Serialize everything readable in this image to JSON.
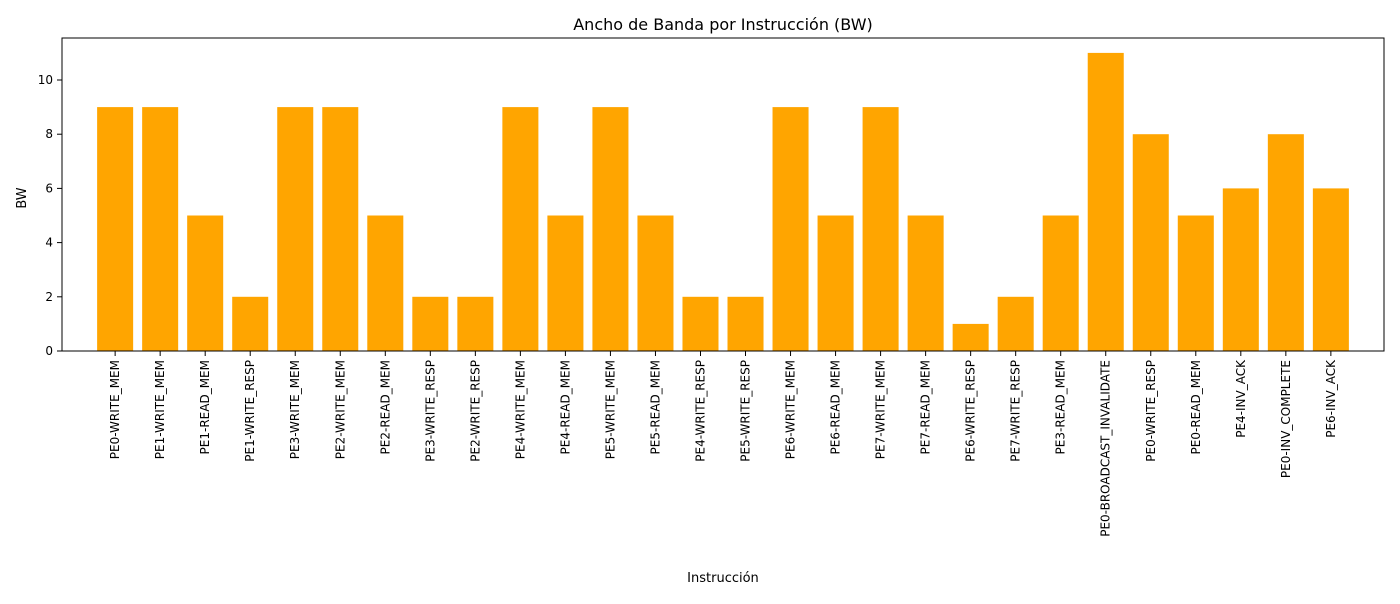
{
  "chart_data": {
    "type": "bar",
    "title": "Ancho de Banda por Instrucción (BW)",
    "xlabel": "Instrucción",
    "ylabel": "BW",
    "categories": [
      "PE0-WRITE_MEM",
      "PE1-WRITE_MEM",
      "PE1-READ_MEM",
      "PE1-WRITE_RESP",
      "PE3-WRITE_MEM",
      "PE2-WRITE_MEM",
      "PE2-READ_MEM",
      "PE3-WRITE_RESP",
      "PE2-WRITE_RESP",
      "PE4-WRITE_MEM",
      "PE4-READ_MEM",
      "PE5-WRITE_MEM",
      "PE5-READ_MEM",
      "PE4-WRITE_RESP",
      "PE5-WRITE_RESP",
      "PE6-WRITE_MEM",
      "PE6-READ_MEM",
      "PE7-WRITE_MEM",
      "PE7-READ_MEM",
      "PE6-WRITE_RESP",
      "PE7-WRITE_RESP",
      "PE3-READ_MEM",
      "PE0-BROADCAST_INVALIDATE",
      "PE0-WRITE_RESP",
      "PE0-READ_MEM",
      "PE4-INV_ACK",
      "PE0-INV_COMPLETE",
      "PE6-INV_ACK"
    ],
    "values": [
      9,
      9,
      5,
      2,
      9,
      9,
      5,
      2,
      2,
      9,
      5,
      9,
      5,
      2,
      2,
      9,
      5,
      9,
      5,
      1,
      2,
      5,
      11,
      8,
      5,
      6,
      8,
      6
    ],
    "ylim": [
      0,
      11.55
    ],
    "yticks": [
      0,
      2,
      4,
      6,
      8,
      10
    ],
    "bar_color": "#FFA500",
    "grid": false,
    "legend": "none"
  }
}
